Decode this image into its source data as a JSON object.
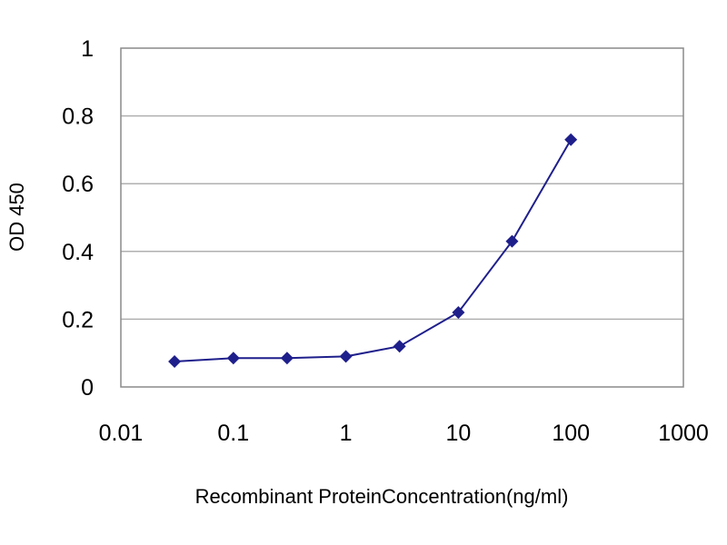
{
  "chart_data": {
    "type": "line",
    "title": "",
    "xlabel": "Recombinant ProteinConcentration(ng/ml)",
    "ylabel": "OD 450",
    "x_scale": "log",
    "xlim": [
      0.01,
      1000
    ],
    "ylim": [
      0,
      1
    ],
    "x_ticks": [
      0.01,
      0.1,
      1,
      10,
      100,
      1000
    ],
    "x_tick_labels": [
      "0.01",
      "0.1",
      "1",
      "10",
      "100",
      "1000"
    ],
    "y_ticks": [
      0,
      0.2,
      0.4,
      0.6,
      0.8,
      1
    ],
    "y_tick_labels": [
      "0",
      "0.2",
      "0.4",
      "0.6",
      "0.8",
      "1"
    ],
    "grid": "horizontal",
    "legend": "none",
    "colors": {
      "series": "#1f1f8c",
      "gridline": "#b0b0b0",
      "frame": "#8a8a8a"
    },
    "series": [
      {
        "x": [
          0.03,
          0.1,
          0.3,
          1,
          3,
          10,
          30,
          100
        ],
        "y": [
          0.075,
          0.085,
          0.085,
          0.09,
          0.12,
          0.22,
          0.43,
          0.73
        ]
      }
    ]
  }
}
